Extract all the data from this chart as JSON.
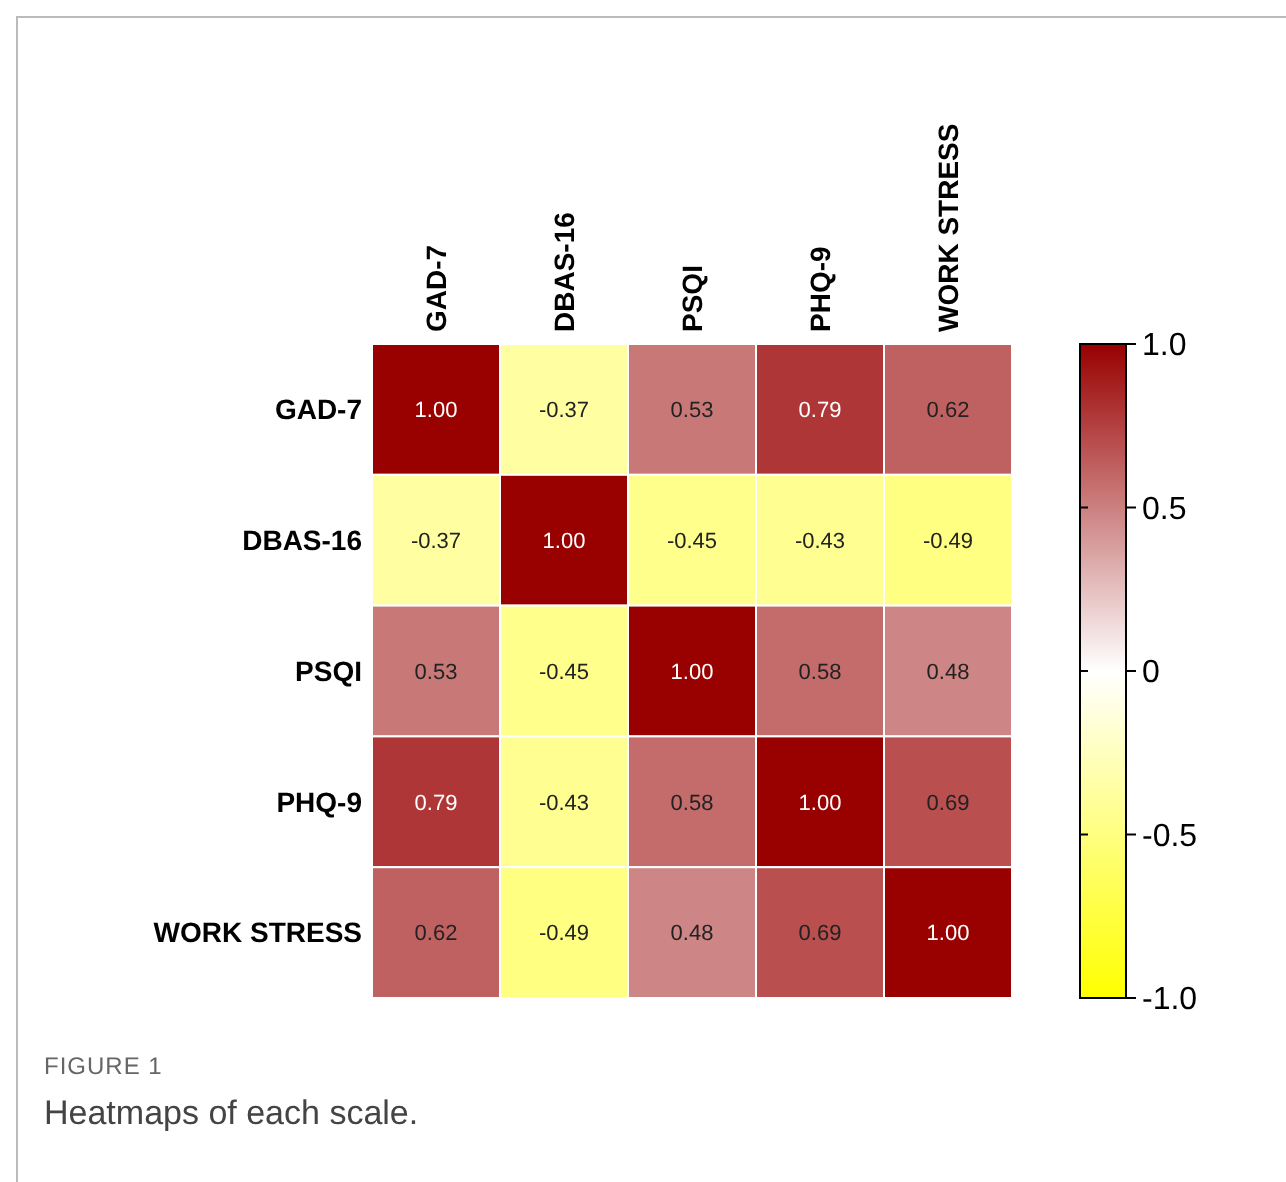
{
  "chart_data": {
    "type": "heatmap",
    "categories": [
      "GAD-7",
      "DBAS-16",
      "PSQI",
      "PHQ-9",
      "WORK STRESS"
    ],
    "y_categories": [
      "GAD-7",
      "DBAS-16",
      "PSQI",
      "PHQ-9",
      "WORK STRESS"
    ],
    "cells": [
      [
        1.0,
        -0.37,
        0.53,
        0.79,
        0.62
      ],
      [
        -0.37,
        1.0,
        -0.45,
        -0.43,
        -0.49
      ],
      [
        0.53,
        -0.45,
        1.0,
        0.58,
        0.48
      ],
      [
        0.79,
        -0.43,
        0.58,
        1.0,
        0.69
      ],
      [
        0.62,
        -0.49,
        0.48,
        0.69,
        1.0
      ]
    ],
    "cell_labels": [
      [
        "1.00",
        "-0.37",
        "0.53",
        "0.79",
        "0.62"
      ],
      [
        "-0.37",
        "1.00",
        "-0.45",
        "-0.43",
        "-0.49"
      ],
      [
        "0.53",
        "-0.45",
        "1.00",
        "0.58",
        "0.48"
      ],
      [
        "0.79",
        "-0.43",
        "0.58",
        "1.00",
        "0.69"
      ],
      [
        "0.62",
        "-0.49",
        "0.48",
        "0.69",
        "1.00"
      ]
    ],
    "clim": [
      -1,
      1
    ],
    "cticks": [
      {
        "value": 1,
        "label": "1.0"
      },
      0.5,
      0,
      -0.5,
      {
        "value": -1,
        "label": "-1.0"
      }
    ],
    "annotations": [
      "FIGURE 1",
      "Heatmaps of each scale."
    ]
  }
}
